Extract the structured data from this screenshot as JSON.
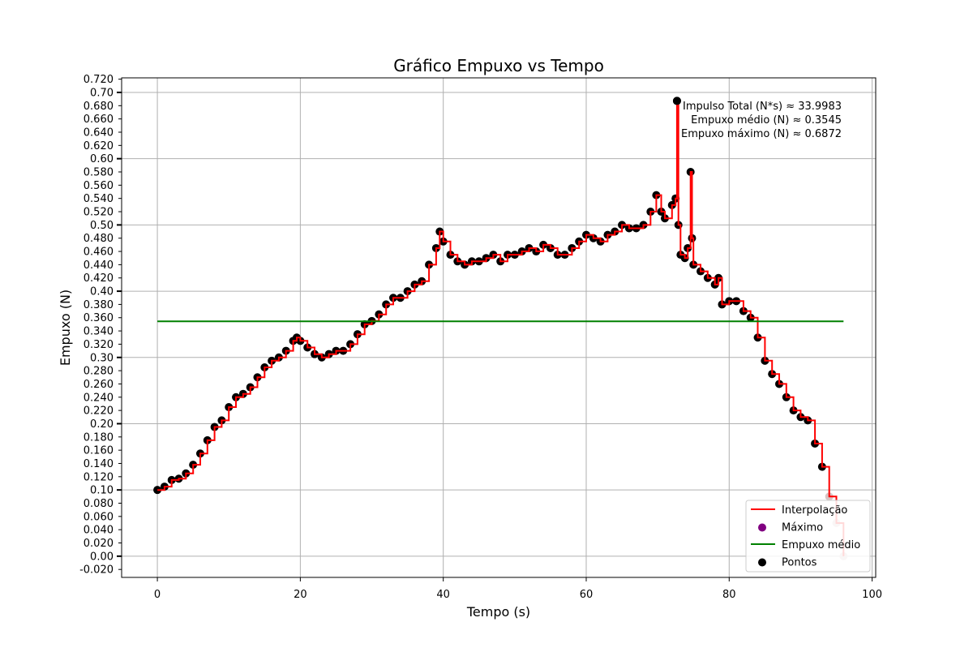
{
  "chart_data": {
    "type": "line",
    "title": "Gráfico Empuxo vs Tempo",
    "xlabel": "Tempo (s)",
    "ylabel": "Empuxo (N)",
    "xlim": [
      -5,
      100.5
    ],
    "ylim": [
      -0.032,
      0.722
    ],
    "x_ticks": [
      0,
      20,
      40,
      60,
      80,
      100
    ],
    "x_tick_labels": [
      "0",
      "20",
      "40",
      "60",
      "80",
      "100"
    ],
    "y_ticks": [
      -0.02,
      0.0,
      0.02,
      0.04,
      0.06,
      0.08,
      0.1,
      0.12,
      0.14,
      0.16,
      0.18,
      0.2,
      0.22,
      0.24,
      0.26,
      0.28,
      0.3,
      0.32,
      0.34,
      0.36,
      0.38,
      0.4,
      0.42,
      0.44,
      0.46,
      0.48,
      0.5,
      0.52,
      0.54,
      0.56,
      0.58,
      0.6,
      0.62,
      0.64,
      0.66,
      0.68,
      0.7,
      0.72
    ],
    "y_tick_labels": [
      "-0.020",
      "0.00",
      "0.020",
      "0.040",
      "0.060",
      "0.080",
      "0.10",
      "0.120",
      "0.140",
      "0.160",
      "0.180",
      "0.20",
      "0.220",
      "0.240",
      "0.260",
      "0.280",
      "0.30",
      "0.320",
      "0.340",
      "0.360",
      "0.380",
      "0.40",
      "0.420",
      "0.440",
      "0.460",
      "0.480",
      "0.50",
      "0.520",
      "0.540",
      "0.560",
      "0.580",
      "0.60",
      "0.620",
      "0.640",
      "0.660",
      "0.680",
      "0.70",
      "0.720"
    ],
    "grid": true,
    "legend_position": "bottom-right",
    "annotations": [
      "Impulso Total (N*s) ≈ 33.9983",
      "Empuxo médio (N) ≈ 0.3545",
      "Empuxo máximo (N) ≈ 0.6872"
    ],
    "colors": {
      "interpolation": "#ff0000",
      "points": "#000000",
      "mean": "#008000",
      "max": "#800080",
      "grid": "#b0b0b0",
      "tail_points": "#d8c4c4"
    },
    "mean_value": 0.3545,
    "mean_x_range": [
      0,
      96
    ],
    "max_point": {
      "x": 72.7,
      "y": 0.6872
    },
    "series": [
      {
        "name": "Interpolação",
        "kind": "line",
        "points": [
          [
            0,
            0.1
          ],
          [
            1,
            0.105
          ],
          [
            2,
            0.115
          ],
          [
            3,
            0.117
          ],
          [
            4,
            0.125
          ],
          [
            5,
            0.138
          ],
          [
            6,
            0.155
          ],
          [
            7,
            0.175
          ],
          [
            8,
            0.195
          ],
          [
            9,
            0.205
          ],
          [
            10,
            0.225
          ],
          [
            11,
            0.24
          ],
          [
            12,
            0.245
          ],
          [
            13,
            0.255
          ],
          [
            14,
            0.27
          ],
          [
            15,
            0.285
          ],
          [
            16,
            0.295
          ],
          [
            17,
            0.3
          ],
          [
            18,
            0.31
          ],
          [
            19,
            0.325
          ],
          [
            19.5,
            0.33
          ],
          [
            20,
            0.325
          ],
          [
            21,
            0.315
          ],
          [
            22,
            0.305
          ],
          [
            23,
            0.3
          ],
          [
            24,
            0.305
          ],
          [
            25,
            0.31
          ],
          [
            26,
            0.31
          ],
          [
            27,
            0.32
          ],
          [
            28,
            0.335
          ],
          [
            29,
            0.35
          ],
          [
            30,
            0.355
          ],
          [
            31,
            0.365
          ],
          [
            32,
            0.38
          ],
          [
            33,
            0.39
          ],
          [
            34,
            0.39
          ],
          [
            35,
            0.4
          ],
          [
            36,
            0.41
          ],
          [
            37,
            0.415
          ],
          [
            38,
            0.44
          ],
          [
            39,
            0.465
          ],
          [
            39.5,
            0.49
          ],
          [
            40,
            0.475
          ],
          [
            41,
            0.455
          ],
          [
            42,
            0.445
          ],
          [
            43,
            0.44
          ],
          [
            44,
            0.445
          ],
          [
            45,
            0.445
          ],
          [
            46,
            0.45
          ],
          [
            47,
            0.455
          ],
          [
            48,
            0.445
          ],
          [
            49,
            0.455
          ],
          [
            50,
            0.455
          ],
          [
            51,
            0.46
          ],
          [
            52,
            0.465
          ],
          [
            53,
            0.46
          ],
          [
            54,
            0.47
          ],
          [
            55,
            0.465
          ],
          [
            56,
            0.455
          ],
          [
            57,
            0.455
          ],
          [
            58,
            0.465
          ],
          [
            59,
            0.475
          ],
          [
            60,
            0.485
          ],
          [
            61,
            0.48
          ],
          [
            62,
            0.475
          ],
          [
            63,
            0.485
          ],
          [
            64,
            0.49
          ],
          [
            65,
            0.5
          ],
          [
            66,
            0.495
          ],
          [
            67,
            0.495
          ],
          [
            68,
            0.5
          ],
          [
            69,
            0.52
          ],
          [
            69.8,
            0.545
          ],
          [
            70.5,
            0.52
          ],
          [
            71,
            0.51
          ],
          [
            72,
            0.53
          ],
          [
            72.5,
            0.54
          ],
          [
            72.7,
            0.6872
          ],
          [
            72.9,
            0.5
          ],
          [
            73.2,
            0.455
          ],
          [
            73.8,
            0.45
          ],
          [
            74.2,
            0.465
          ],
          [
            74.6,
            0.58
          ],
          [
            74.8,
            0.48
          ],
          [
            75,
            0.44
          ],
          [
            76,
            0.43
          ],
          [
            77,
            0.42
          ],
          [
            78,
            0.41
          ],
          [
            78.5,
            0.42
          ],
          [
            79,
            0.38
          ],
          [
            80,
            0.385
          ],
          [
            81,
            0.385
          ],
          [
            82,
            0.37
          ],
          [
            83,
            0.36
          ],
          [
            84,
            0.33
          ],
          [
            85,
            0.295
          ],
          [
            86,
            0.275
          ],
          [
            87,
            0.26
          ],
          [
            88,
            0.24
          ],
          [
            89,
            0.22
          ],
          [
            90,
            0.21
          ],
          [
            91,
            0.205
          ],
          [
            92,
            0.17
          ],
          [
            93,
            0.135
          ],
          [
            94,
            0.09
          ],
          [
            95,
            0.05
          ],
          [
            96,
            0.0
          ]
        ]
      },
      {
        "name": "Pontos",
        "kind": "scatter",
        "points": [
          [
            0,
            0.1
          ],
          [
            1,
            0.105
          ],
          [
            2,
            0.115
          ],
          [
            3,
            0.117
          ],
          [
            4,
            0.125
          ],
          [
            5,
            0.138
          ],
          [
            6,
            0.155
          ],
          [
            7,
            0.175
          ],
          [
            8,
            0.195
          ],
          [
            9,
            0.205
          ],
          [
            10,
            0.225
          ],
          [
            11,
            0.24
          ],
          [
            12,
            0.245
          ],
          [
            13,
            0.255
          ],
          [
            14,
            0.27
          ],
          [
            15,
            0.285
          ],
          [
            16,
            0.295
          ],
          [
            17,
            0.3
          ],
          [
            18,
            0.31
          ],
          [
            19,
            0.325
          ],
          [
            19.5,
            0.33
          ],
          [
            20,
            0.325
          ],
          [
            21,
            0.315
          ],
          [
            22,
            0.305
          ],
          [
            23,
            0.3
          ],
          [
            24,
            0.305
          ],
          [
            25,
            0.31
          ],
          [
            26,
            0.31
          ],
          [
            27,
            0.32
          ],
          [
            28,
            0.335
          ],
          [
            29,
            0.35
          ],
          [
            30,
            0.355
          ],
          [
            31,
            0.365
          ],
          [
            32,
            0.38
          ],
          [
            33,
            0.39
          ],
          [
            34,
            0.39
          ],
          [
            35,
            0.4
          ],
          [
            36,
            0.41
          ],
          [
            37,
            0.415
          ],
          [
            38,
            0.44
          ],
          [
            39,
            0.465
          ],
          [
            39.5,
            0.49
          ],
          [
            40,
            0.475
          ],
          [
            41,
            0.455
          ],
          [
            42,
            0.445
          ],
          [
            43,
            0.44
          ],
          [
            44,
            0.445
          ],
          [
            45,
            0.445
          ],
          [
            46,
            0.45
          ],
          [
            47,
            0.455
          ],
          [
            48,
            0.445
          ],
          [
            49,
            0.455
          ],
          [
            50,
            0.455
          ],
          [
            51,
            0.46
          ],
          [
            52,
            0.465
          ],
          [
            53,
            0.46
          ],
          [
            54,
            0.47
          ],
          [
            55,
            0.465
          ],
          [
            56,
            0.455
          ],
          [
            57,
            0.455
          ],
          [
            58,
            0.465
          ],
          [
            59,
            0.475
          ],
          [
            60,
            0.485
          ],
          [
            61,
            0.48
          ],
          [
            62,
            0.475
          ],
          [
            63,
            0.485
          ],
          [
            64,
            0.49
          ],
          [
            65,
            0.5
          ],
          [
            66,
            0.495
          ],
          [
            67,
            0.495
          ],
          [
            68,
            0.5
          ],
          [
            69,
            0.52
          ],
          [
            69.8,
            0.545
          ],
          [
            70.5,
            0.52
          ],
          [
            71,
            0.51
          ],
          [
            72,
            0.53
          ],
          [
            72.5,
            0.54
          ],
          [
            72.7,
            0.6872
          ],
          [
            72.9,
            0.5
          ],
          [
            73.2,
            0.455
          ],
          [
            73.8,
            0.45
          ],
          [
            74.2,
            0.465
          ],
          [
            74.6,
            0.58
          ],
          [
            74.8,
            0.48
          ],
          [
            75,
            0.44
          ],
          [
            76,
            0.43
          ],
          [
            77,
            0.42
          ],
          [
            78,
            0.41
          ],
          [
            78.5,
            0.42
          ],
          [
            79,
            0.38
          ],
          [
            80,
            0.385
          ],
          [
            81,
            0.385
          ],
          [
            82,
            0.37
          ],
          [
            83,
            0.36
          ],
          [
            84,
            0.33
          ],
          [
            85,
            0.295
          ],
          [
            86,
            0.275
          ],
          [
            87,
            0.26
          ],
          [
            88,
            0.24
          ],
          [
            89,
            0.22
          ],
          [
            90,
            0.21
          ],
          [
            91,
            0.205
          ],
          [
            92,
            0.17
          ],
          [
            93,
            0.135
          ],
          [
            94,
            0.09
          ],
          [
            95,
            0.05
          ],
          [
            96,
            0.0
          ]
        ]
      },
      {
        "name": "Empuxo médio",
        "kind": "hline",
        "value": 0.3545
      },
      {
        "name": "Máximo",
        "kind": "marker",
        "points": [
          [
            72.7,
            0.6872
          ]
        ]
      }
    ],
    "legend": [
      "Interpolação",
      "Máximo",
      "Empuxo médio",
      "Pontos"
    ]
  }
}
